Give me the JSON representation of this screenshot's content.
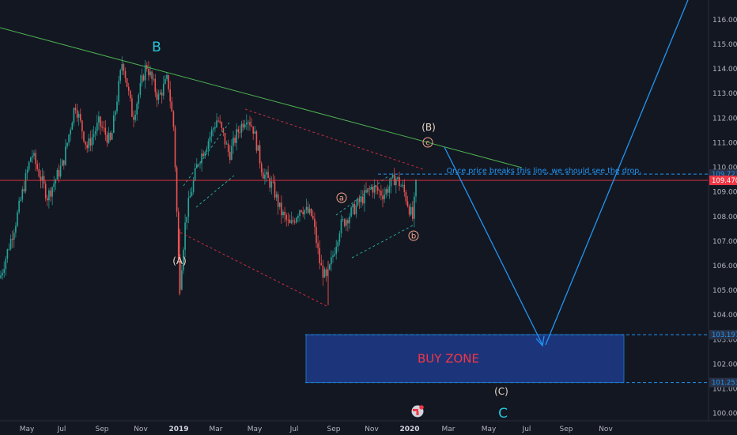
{
  "chart_data": {
    "type": "candlestick",
    "y_axis": {
      "min": 99.7,
      "max": 116.8,
      "ticks": [
        100,
        101,
        102,
        103,
        104,
        105,
        106,
        107,
        108,
        109,
        110,
        111,
        112,
        113,
        114,
        115,
        116
      ]
    },
    "x_axis": {
      "ticks": [
        {
          "label": "May",
          "strong": false
        },
        {
          "label": "Jul",
          "strong": false
        },
        {
          "label": "Sep",
          "strong": false
        },
        {
          "label": "Nov",
          "strong": false
        },
        {
          "label": "2019",
          "strong": true
        },
        {
          "label": "Mar",
          "strong": false
        },
        {
          "label": "May",
          "strong": false
        },
        {
          "label": "Jul",
          "strong": false
        },
        {
          "label": "Sep",
          "strong": false
        },
        {
          "label": "Nov",
          "strong": false
        },
        {
          "label": "2020",
          "strong": true
        },
        {
          "label": "Mar",
          "strong": false
        },
        {
          "label": "May",
          "strong": false
        },
        {
          "label": "Jul",
          "strong": false
        },
        {
          "label": "Sep",
          "strong": false
        },
        {
          "label": "Nov",
          "strong": false
        }
      ]
    },
    "price_path": [
      [
        0,
        105.5
      ],
      [
        20,
        107.8
      ],
      [
        40,
        110.6
      ],
      [
        60,
        108.8
      ],
      [
        80,
        110.2
      ],
      [
        95,
        112.6
      ],
      [
        110,
        110.8
      ],
      [
        125,
        111.8
      ],
      [
        140,
        111.0
      ],
      [
        155,
        114.4
      ],
      [
        168,
        112.0
      ],
      [
        185,
        114.2
      ],
      [
        200,
        112.8
      ],
      [
        212,
        113.6
      ],
      [
        220,
        111.5
      ],
      [
        227,
        105.0
      ],
      [
        235,
        108.0
      ],
      [
        250,
        110.2
      ],
      [
        262,
        111.0
      ],
      [
        275,
        112.0
      ],
      [
        290,
        110.5
      ],
      [
        300,
        111.4
      ],
      [
        312,
        112.1
      ],
      [
        320,
        111.6
      ],
      [
        332,
        109.8
      ],
      [
        345,
        109.2
      ],
      [
        355,
        108.2
      ],
      [
        367,
        107.6
      ],
      [
        380,
        108.4
      ],
      [
        395,
        108.0
      ],
      [
        405,
        106.0
      ],
      [
        413,
        105.4
      ],
      [
        420,
        106.3
      ],
      [
        430,
        107.6
      ],
      [
        440,
        108.0
      ],
      [
        455,
        108.6
      ],
      [
        470,
        109.2
      ],
      [
        485,
        108.9
      ],
      [
        500,
        109.6
      ],
      [
        510,
        109.1
      ],
      [
        518,
        108.3
      ],
      [
        522,
        107.9
      ],
      [
        527,
        109.6
      ]
    ],
    "current_price": 109.47,
    "levels": [
      109.723,
      103.197,
      101.253
    ],
    "price_tags": [
      {
        "value": 109.723,
        "text": "109.723",
        "color": "#2a3146",
        "text_color": "#2196f3"
      },
      {
        "value": 109.47,
        "text": "109.470",
        "color": "#f23645",
        "text_color": "#ffffff"
      },
      {
        "value": 103.197,
        "text": "103.197",
        "color": "#2a3146",
        "text_color": "#2196f3"
      },
      {
        "value": 101.253,
        "text": "101.253",
        "color": "#2a3146",
        "text_color": "#2196f3"
      }
    ],
    "buy_zone": {
      "top": 103.197,
      "bottom": 101.253,
      "label": "BUY ZONE"
    },
    "wave_labels": [
      {
        "text": "B",
        "style": "big-cyan"
      },
      {
        "text": "(B)",
        "style": "paren"
      },
      {
        "text": "c",
        "style": "circle"
      },
      {
        "text": "a",
        "style": "circle"
      },
      {
        "text": "b",
        "style": "circle"
      },
      {
        "text": "(A)",
        "style": "paren"
      },
      {
        "text": "(C)",
        "style": "paren"
      },
      {
        "text": "C",
        "style": "big-cyan"
      }
    ],
    "annotation": "Once price breaks this line, we should see the drop."
  },
  "colors": {
    "background": "#131722",
    "up": "#26a69a",
    "down": "#ef5350",
    "trendline": "#4caf50",
    "projection": "#2196f3",
    "channel_red": "#f23645",
    "channel_green": "#26a69a",
    "current_line": "#f23645",
    "zone_fill": "#1e3a8a",
    "cyan": "#26c6da",
    "grid": "#1e2230"
  },
  "icons": {
    "tradingview": "tradingview-logo-icon"
  }
}
